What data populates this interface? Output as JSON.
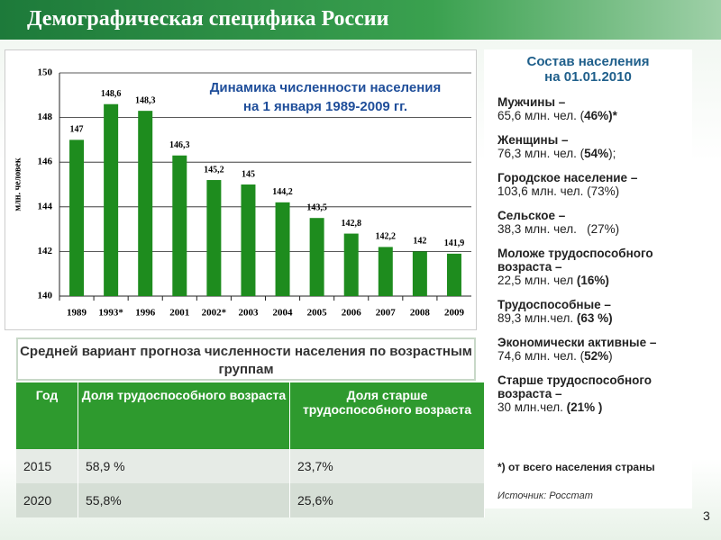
{
  "header": {
    "title": "Демографическая специфика России"
  },
  "chart_data": {
    "type": "bar",
    "title_lines": [
      "Динамика численности населения",
      "на 1 января 1989-2009 гг."
    ],
    "y_label": "млн. человек",
    "categories": [
      "1989",
      "1993*",
      "1996",
      "2001",
      "2002*",
      "2003",
      "2004",
      "2005",
      "2006",
      "2007",
      "2008",
      "2009"
    ],
    "values": [
      147,
      148.6,
      148.3,
      146.3,
      145.2,
      145,
      144.2,
      143.5,
      142.8,
      142.2,
      142,
      141.9
    ],
    "value_labels": [
      "147",
      "148,6",
      "148,3",
      "146,3",
      "145,2",
      "145",
      "144,2",
      "143,5",
      "142,8",
      "142,2",
      "142",
      "141,9"
    ],
    "color": "#1e8c1e",
    "ylim": [
      140,
      150
    ],
    "yticks": [
      140,
      142,
      144,
      146,
      148,
      150
    ],
    "grid": true
  },
  "composition": {
    "title_lines": [
      "Состав населения",
      "на 01.01.2010"
    ],
    "items": [
      {
        "label": "Мужчины –",
        "detail": [
          {
            "t": "65,6 млн. чел. ("
          },
          {
            "t": "46%)*",
            "b": true
          }
        ]
      },
      {
        "label": "Женщины –",
        "detail": [
          {
            "t": "76,3 млн. чел. ("
          },
          {
            "t": "54%",
            "b": true
          },
          {
            "t": ");"
          }
        ]
      },
      {
        "label": "Городское население –",
        "detail": [
          {
            "t": "103,6 млн. чел. (73%)"
          }
        ]
      },
      {
        "label": "Сельское –",
        "detail": [
          {
            "t": "38,3 млн. чел.   (27%)"
          }
        ]
      },
      {
        "label": "Моложе трудоспособного возраста –",
        "detail": [
          {
            "t": "22,5 млн. чел "
          },
          {
            "t": "(16%)",
            "b": true
          }
        ]
      },
      {
        "label": "Трудоспособные –",
        "detail": [
          {
            "t": "89,3 млн.чел. "
          },
          {
            "t": "(63 %)",
            "b": true
          }
        ]
      },
      {
        "label": "Экономически активные –",
        "detail": [
          {
            "t": "74,6 млн. чел. ("
          },
          {
            "t": "52%",
            "b": true
          },
          {
            "t": ")"
          }
        ]
      },
      {
        "label": "Старше трудоспособного возраста –",
        "detail": [
          {
            "t": "30 млн.чел. "
          },
          {
            "t": "(21% )",
            "b": true
          }
        ]
      }
    ],
    "footnote": "*) от всего населения страны",
    "source": "Источник: Росстат"
  },
  "forecast": {
    "title": "Средней вариант прогноза численности населения по возрастным группам",
    "columns": [
      "Год",
      "Доля трудоспособного возраста",
      "Доля старше трудоспособного возраста"
    ],
    "rows": [
      [
        "2015",
        "58,9 %",
        "23,7%"
      ],
      [
        "2020",
        "55,8%",
        "25,6%"
      ]
    ]
  },
  "page_number": "3"
}
